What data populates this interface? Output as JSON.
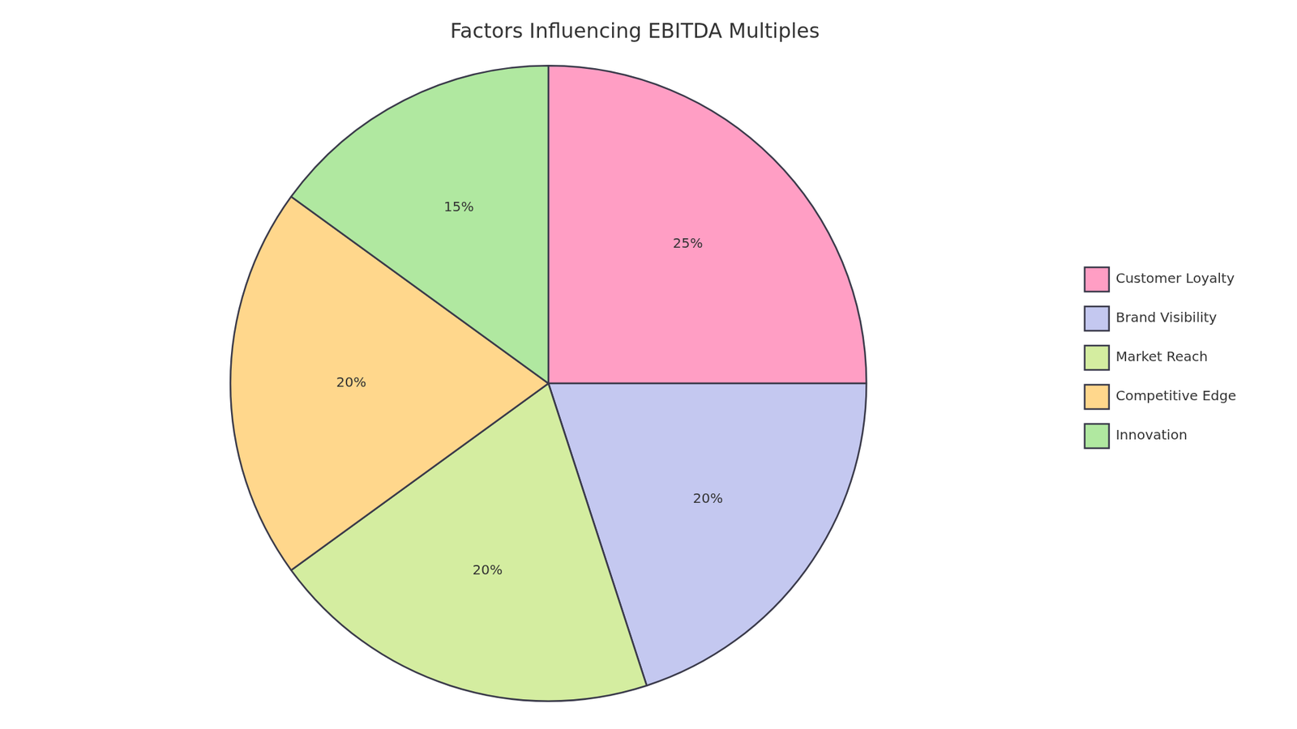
{
  "chart_data": {
    "type": "pie",
    "title": "Factors Influencing EBITDA Multiples",
    "categories": [
      "Customer Loyalty",
      "Brand Visibility",
      "Market Reach",
      "Competitive Edge",
      "Innovation"
    ],
    "values": [
      25,
      20,
      20,
      20,
      15
    ],
    "value_labels": [
      "25%",
      "20%",
      "20%",
      "20%",
      "15%"
    ],
    "data_labels": true,
    "colors": [
      "#FF9EC4",
      "#C4C8F0",
      "#D4EDA0",
      "#FFD78C",
      "#B0E8A0"
    ],
    "legend": "right"
  }
}
